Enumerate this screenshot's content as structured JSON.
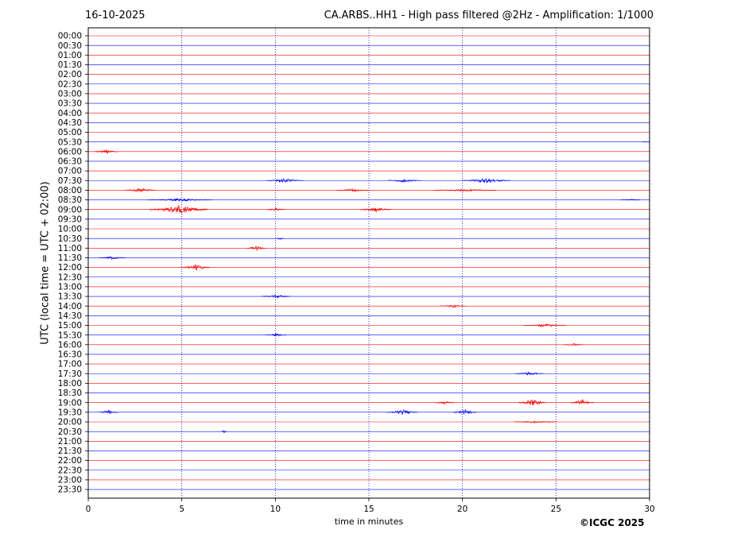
{
  "header": {
    "date": "16-10-2025",
    "title": "CA.ARBS..HH1 - High pass filtered @2Hz - Amplification: 1/1000"
  },
  "footer": {
    "copyright": "©ICGC 2025"
  },
  "colors": {
    "red_trace": "#ff0000",
    "blue_trace": "#0000ff",
    "grid": "#0000aa"
  },
  "chart_data": {
    "type": "line",
    "title": "CA.ARBS..HH1 - High pass filtered @2Hz - Amplification: 1/1000",
    "xlabel": "time in minutes",
    "ylabel": "UTC (local time = UTC + 02:00)",
    "xlim": [
      0,
      30
    ],
    "xticks": [
      0,
      5,
      10,
      15,
      20,
      25,
      30
    ],
    "grid": "vertical dotted lines at 5-minute intervals",
    "rows": [
      "00:00",
      "00:30",
      "01:00",
      "01:30",
      "02:00",
      "02:30",
      "03:00",
      "03:30",
      "04:00",
      "04:30",
      "05:00",
      "05:30",
      "06:00",
      "06:30",
      "07:00",
      "07:30",
      "08:00",
      "08:30",
      "09:00",
      "09:30",
      "10:00",
      "10:30",
      "11:00",
      "11:30",
      "12:00",
      "12:30",
      "13:00",
      "13:30",
      "14:00",
      "14:30",
      "15:00",
      "15:30",
      "16:00",
      "16:30",
      "17:00",
      "17:30",
      "18:00",
      "18:30",
      "19:00",
      "19:30",
      "20:00",
      "20:30",
      "21:00",
      "21:30",
      "22:00",
      "22:30",
      "23:00",
      "23:30"
    ],
    "row_colors": "alternating red (even rows) and blue (odd rows)",
    "events": [
      {
        "row": "05:30",
        "start": 29.6,
        "end": 30,
        "amp": 0.1
      },
      {
        "row": "06:00",
        "start": 0.3,
        "end": 1.6,
        "amp": 0.4
      },
      {
        "row": "07:30",
        "start": 9.5,
        "end": 11.5,
        "amp": 0.4
      },
      {
        "row": "07:30",
        "start": 16,
        "end": 17.8,
        "amp": 0.35
      },
      {
        "row": "07:30",
        "start": 20,
        "end": 22.6,
        "amp": 0.5
      },
      {
        "row": "08:00",
        "start": 2.0,
        "end": 3.6,
        "amp": 0.4
      },
      {
        "row": "08:00",
        "start": 13.3,
        "end": 15.0,
        "amp": 0.3
      },
      {
        "row": "08:00",
        "start": 18.5,
        "end": 21.8,
        "amp": 0.25
      },
      {
        "row": "08:30",
        "start": 3.2,
        "end": 6.6,
        "amp": 0.3
      },
      {
        "row": "08:30",
        "start": 28.5,
        "end": 29.5,
        "amp": 0.2
      },
      {
        "row": "09:00",
        "start": 3.3,
        "end": 6.4,
        "amp": 0.8
      },
      {
        "row": "09:00",
        "start": 9.5,
        "end": 10.5,
        "amp": 0.3
      },
      {
        "row": "09:00",
        "start": 14.5,
        "end": 16.2,
        "amp": 0.45
      },
      {
        "row": "10:30",
        "start": 10.0,
        "end": 10.5,
        "amp": 0.2
      },
      {
        "row": "11:00",
        "start": 8.5,
        "end": 9.5,
        "amp": 0.5
      },
      {
        "row": "11:30",
        "start": 0.6,
        "end": 2.0,
        "amp": 0.3
      },
      {
        "row": "12:00",
        "start": 5.0,
        "end": 6.5,
        "amp": 0.55
      },
      {
        "row": "13:30",
        "start": 9.3,
        "end": 10.8,
        "amp": 0.35
      },
      {
        "row": "14:00",
        "start": 18.8,
        "end": 20.2,
        "amp": 0.3
      },
      {
        "row": "15:00",
        "start": 23.3,
        "end": 25.5,
        "amp": 0.3
      },
      {
        "row": "15:30",
        "start": 9.5,
        "end": 10.6,
        "amp": 0.3
      },
      {
        "row": "16:00",
        "start": 25.4,
        "end": 26.5,
        "amp": 0.25
      },
      {
        "row": "17:30",
        "start": 22.8,
        "end": 24.4,
        "amp": 0.35
      },
      {
        "row": "19:00",
        "start": 18.5,
        "end": 19.6,
        "amp": 0.3
      },
      {
        "row": "19:00",
        "start": 23.0,
        "end": 24.5,
        "amp": 0.7
      },
      {
        "row": "19:00",
        "start": 25.8,
        "end": 27.0,
        "amp": 0.6
      },
      {
        "row": "19:30",
        "start": 0.6,
        "end": 1.6,
        "amp": 0.45
      },
      {
        "row": "19:30",
        "start": 16.0,
        "end": 17.6,
        "amp": 0.5
      },
      {
        "row": "19:30",
        "start": 19.5,
        "end": 20.8,
        "amp": 0.5
      },
      {
        "row": "20:00",
        "start": 22.8,
        "end": 25.0,
        "amp": 0.25
      },
      {
        "row": "20:30",
        "start": 7.1,
        "end": 7.4,
        "amp": 0.25
      }
    ]
  }
}
